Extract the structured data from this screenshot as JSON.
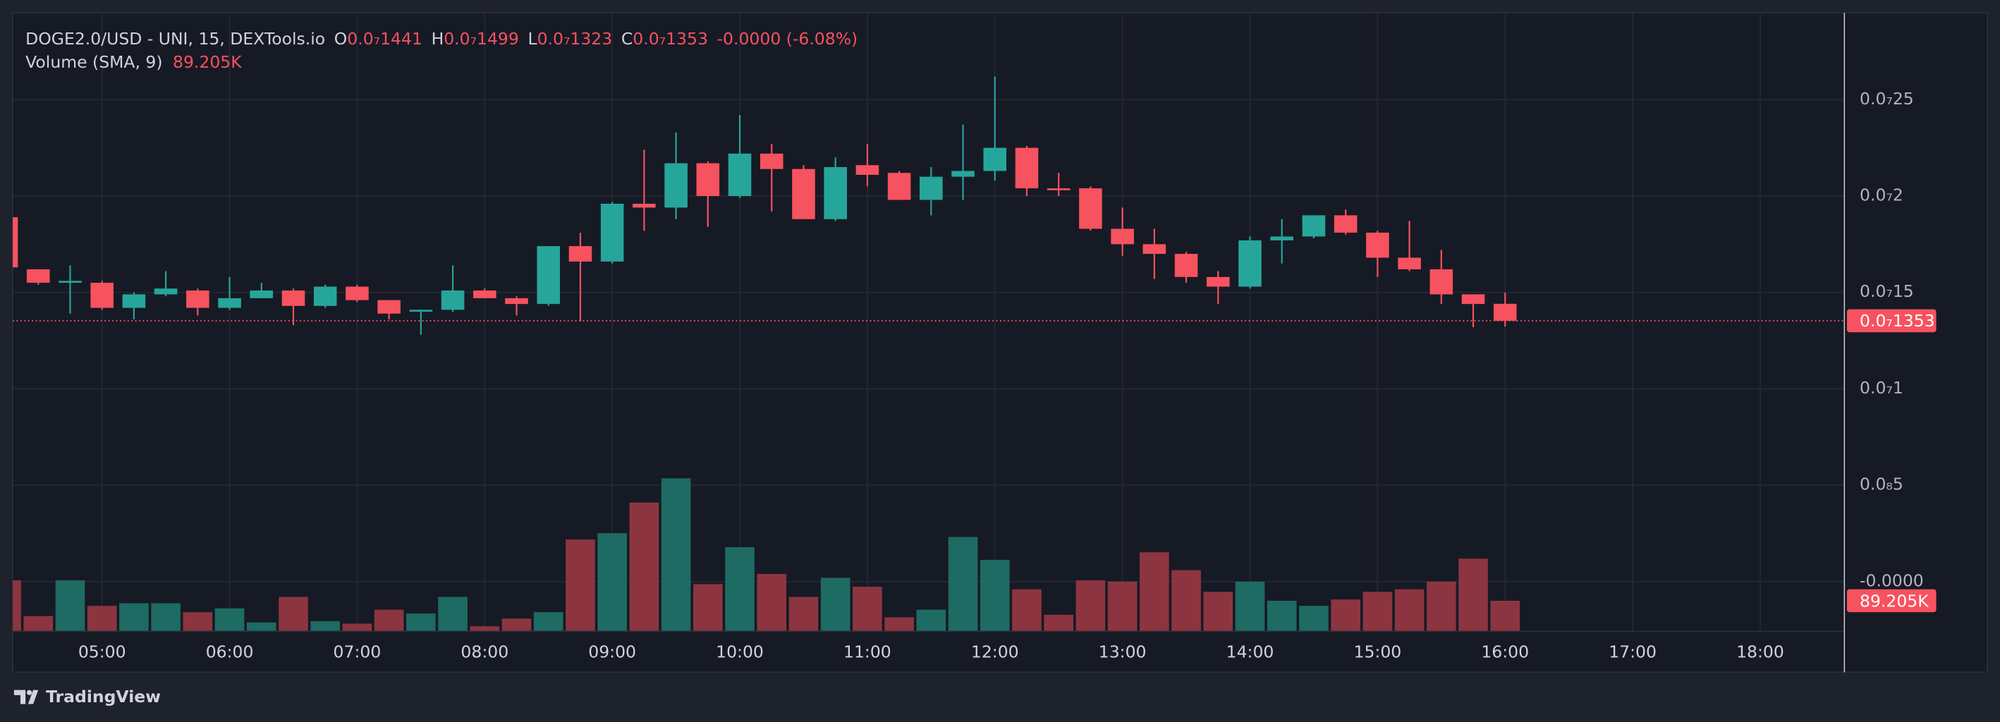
{
  "chart_data": {
    "type": "candlestick",
    "title": "DOGE2.0/USD - UNI, 15, DEXTools.io",
    "ohlc_legend": [
      {
        "key": "O",
        "label": "0.0₇1441"
      },
      {
        "key": "H",
        "label": "0.0₇1499"
      },
      {
        "key": "L",
        "label": "0.0₇1323"
      },
      {
        "key": "C",
        "label": "0.0₇1353"
      }
    ],
    "change_label": "-0.0000 (-6.08%)",
    "last_price_label": "0.0₇1353",
    "up_color": "#26a69a",
    "down_color": "#f7525f",
    "x": [
      4.25,
      4.5,
      4.75,
      5,
      5.25,
      5.5,
      5.75,
      6,
      6.25,
      6.5,
      6.75,
      7,
      7.25,
      7.5,
      7.75,
      8,
      8.25,
      8.5,
      8.75,
      9,
      9.25,
      9.5,
      9.75,
      10,
      10.25,
      10.5,
      10.75,
      11,
      11.25,
      11.5,
      11.75,
      12,
      12.25,
      12.5,
      12.75,
      13,
      13.25,
      13.5,
      13.75,
      14,
      14.25,
      14.5,
      14.75,
      15,
      15.25,
      15.5,
      15.75,
      16
    ],
    "open": [
      1.89e-08,
      1.62e-08,
      1.55e-08,
      1.55e-08,
      1.42e-08,
      1.49e-08,
      1.51e-08,
      1.42e-08,
      1.47e-08,
      1.51e-08,
      1.43e-08,
      1.53e-08,
      1.46e-08,
      1.4e-08,
      1.41e-08,
      1.51e-08,
      1.47e-08,
      1.44e-08,
      1.74e-08,
      1.66e-08,
      1.96e-08,
      1.94e-08,
      2.17e-08,
      2e-08,
      2.22e-08,
      2.14e-08,
      1.88e-08,
      2.16e-08,
      2.12e-08,
      1.98e-08,
      2.1e-08,
      2.13e-08,
      2.25e-08,
      2.04e-08,
      2.04e-08,
      1.83e-08,
      1.75e-08,
      1.7e-08,
      1.58e-08,
      1.53e-08,
      1.77e-08,
      1.79e-08,
      1.9e-08,
      1.81e-08,
      1.68e-08,
      1.62e-08,
      1.49e-08,
      1.441e-08
    ],
    "high": [
      1.9e-08,
      1.62e-08,
      1.64e-08,
      1.56e-08,
      1.5e-08,
      1.61e-08,
      1.52e-08,
      1.58e-08,
      1.55e-08,
      1.52e-08,
      1.54e-08,
      1.54e-08,
      1.46e-08,
      1.41e-08,
      1.64e-08,
      1.52e-08,
      1.48e-08,
      1.74e-08,
      1.81e-08,
      1.97e-08,
      2.24e-08,
      2.33e-08,
      2.18e-08,
      2.42e-08,
      2.27e-08,
      2.16e-08,
      2.2e-08,
      2.27e-08,
      2.13e-08,
      2.15e-08,
      2.37e-08,
      2.62e-08,
      2.26e-08,
      2.12e-08,
      2.05e-08,
      1.94e-08,
      1.83e-08,
      1.71e-08,
      1.61e-08,
      1.79e-08,
      1.88e-08,
      1.9e-08,
      1.93e-08,
      1.82e-08,
      1.87e-08,
      1.72e-08,
      1.49e-08,
      1.499e-08
    ],
    "low": [
      1.62e-08,
      1.54e-08,
      1.39e-08,
      1.41e-08,
      1.36e-08,
      1.48e-08,
      1.38e-08,
      1.41e-08,
      1.47e-08,
      1.33e-08,
      1.42e-08,
      1.45e-08,
      1.36e-08,
      1.28e-08,
      1.4e-08,
      1.47e-08,
      1.38e-08,
      1.43e-08,
      1.35e-08,
      1.65e-08,
      1.82e-08,
      1.88e-08,
      1.84e-08,
      1.99e-08,
      1.92e-08,
      1.88e-08,
      1.87e-08,
      2.05e-08,
      1.98e-08,
      1.9e-08,
      1.98e-08,
      2.08e-08,
      2e-08,
      2e-08,
      1.82e-08,
      1.69e-08,
      1.57e-08,
      1.55e-08,
      1.44e-08,
      1.52e-08,
      1.65e-08,
      1.78e-08,
      1.8e-08,
      1.58e-08,
      1.61e-08,
      1.44e-08,
      1.32e-08,
      1.323e-08
    ],
    "close": [
      1.63e-08,
      1.55e-08,
      1.56e-08,
      1.42e-08,
      1.49e-08,
      1.52e-08,
      1.42e-08,
      1.47e-08,
      1.51e-08,
      1.43e-08,
      1.53e-08,
      1.46e-08,
      1.39e-08,
      1.41e-08,
      1.51e-08,
      1.47e-08,
      1.44e-08,
      1.74e-08,
      1.66e-08,
      1.96e-08,
      1.94e-08,
      2.17e-08,
      2e-08,
      2.22e-08,
      2.14e-08,
      1.88e-08,
      2.15e-08,
      2.11e-08,
      1.98e-08,
      2.1e-08,
      2.13e-08,
      2.25e-08,
      2.04e-08,
      2.03e-08,
      1.83e-08,
      1.75e-08,
      1.7e-08,
      1.58e-08,
      1.53e-08,
      1.77e-08,
      1.79e-08,
      1.9e-08,
      1.81e-08,
      1.68e-08,
      1.62e-08,
      1.49e-08,
      1.44e-08,
      1.353e-08
    ],
    "volume": {
      "name": "Volume (SMA, 9)",
      "up_color": "#1e6b63",
      "down_color": "#8c3540",
      "values": [
        148700,
        44600,
        148700,
        74300,
        81800,
        81800,
        55800,
        66900,
        26000,
        100400,
        29700,
        22300,
        63200,
        52000,
        100400,
        14900,
        37200,
        55800,
        267600,
        286200,
        375400,
        446000,
        137500,
        245300,
        167300,
        100400,
        156100,
        130100,
        40900,
        63200,
        275100,
        208200,
        122700,
        48300,
        148700,
        145000,
        230500,
        178400,
        115200,
        145000,
        89200,
        74300,
        92900,
        115200,
        122700,
        145000,
        211900,
        89205
      ],
      "last_label": "89.205K"
    },
    "xlim": [
      4.3,
      18.66
    ],
    "xticks": [
      {
        "value": 5,
        "label": "05:00"
      },
      {
        "value": 6,
        "label": "06:00"
      },
      {
        "value": 7,
        "label": "07:00"
      },
      {
        "value": 8,
        "label": "08:00"
      },
      {
        "value": 9,
        "label": "09:00"
      },
      {
        "value": 10,
        "label": "10:00"
      },
      {
        "value": 11,
        "label": "11:00"
      },
      {
        "value": 12,
        "label": "12:00"
      },
      {
        "value": 13,
        "label": "13:00"
      },
      {
        "value": 14,
        "label": "14:00"
      },
      {
        "value": 15,
        "label": "15:00"
      },
      {
        "value": 16,
        "label": "16:00"
      },
      {
        "value": 17,
        "label": "17:00"
      },
      {
        "value": 18,
        "label": "18:00"
      }
    ],
    "ylim": [
      -2.58e-09,
      2.95e-08
    ],
    "yticks": [
      {
        "value": 0,
        "label": "-0.0000"
      },
      {
        "value": 5e-09,
        "label": "0.0₈5"
      },
      {
        "value": 1e-08,
        "label": "0.0₇1"
      },
      {
        "value": 1.5e-08,
        "label": "0.0₇15"
      },
      {
        "value": 2e-08,
        "label": "0.0₇2"
      },
      {
        "value": 2.5e-08,
        "label": "0.0₇25"
      }
    ],
    "grid": true,
    "brand": "TradingView"
  }
}
